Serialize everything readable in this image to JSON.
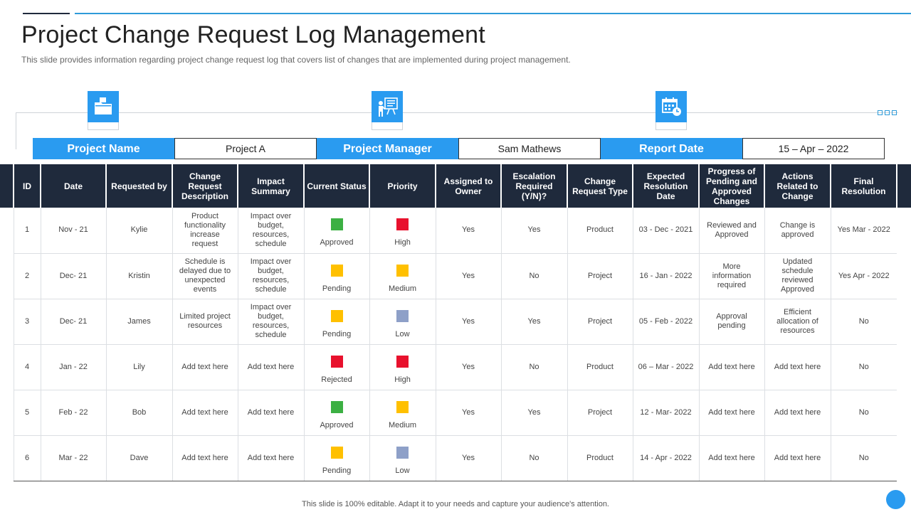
{
  "title": "Project Change Request Log Management",
  "subtitle": "This slide provides information regarding project change request log that covers list of changes that are implemented during project management.",
  "icons": [
    "folder-icon",
    "presentation-icon",
    "calendar-icon"
  ],
  "info": {
    "project_name_label": "Project Name",
    "project_name_value": "Project A",
    "project_manager_label": "Project Manager",
    "project_manager_value": "Sam Mathews",
    "report_date_label": "Report Date",
    "report_date_value": "15 – Apr – 2022"
  },
  "colors": {
    "green": "#3cb043",
    "yellow": "#ffc000",
    "red": "#e8112d",
    "grey": "#8ea0c8"
  },
  "table": {
    "headers": [
      "ID",
      "Date",
      "Requested by",
      "Change Request Description",
      "Impact Summary",
      "Current Status",
      "Priority",
      "Assigned to Owner",
      "Escalation Required (Y/N)?",
      "Change Request Type",
      "Expected Resolution Date",
      "Progress of Pending and Approved Changes",
      "Actions Related to Change",
      "Final Resolution"
    ],
    "rows": [
      {
        "id": "1",
        "date": "Nov - 21",
        "by": "Kylie",
        "desc": "Product functionality increase request",
        "impact": "Impact over budget, resources, schedule",
        "status": "Approved",
        "status_color": "green",
        "priority": "High",
        "priority_color": "red",
        "owner": "Yes",
        "escalation": "Yes",
        "type": "Product",
        "expected": "03 - Dec - 2021",
        "progress": "Reviewed and Approved",
        "actions": "Change is approved",
        "final": "Yes Mar - 2022"
      },
      {
        "id": "2",
        "date": "Dec- 21",
        "by": "Kristin",
        "desc": "Schedule is delayed due to unexpected events",
        "impact": "Impact over budget, resources, schedule",
        "status": "Pending",
        "status_color": "yellow",
        "priority": "Medium",
        "priority_color": "yellow",
        "owner": "Yes",
        "escalation": "No",
        "type": "Project",
        "expected": "16 - Jan - 2022",
        "progress": "More information required",
        "actions": "Updated schedule reviewed Approved",
        "final": "Yes Apr - 2022"
      },
      {
        "id": "3",
        "date": "Dec- 21",
        "by": "James",
        "desc": "Limited project resources",
        "impact": "Impact over budget, resources, schedule",
        "status": "Pending",
        "status_color": "yellow",
        "priority": "Low",
        "priority_color": "grey",
        "owner": "Yes",
        "escalation": "Yes",
        "type": "Project",
        "expected": "05 - Feb - 2022",
        "progress": "Approval pending",
        "actions": "Efficient allocation of resources",
        "final": "No"
      },
      {
        "id": "4",
        "date": "Jan - 22",
        "by": "Lily",
        "desc": "Add text here",
        "impact": "Add text here",
        "status": "Rejected",
        "status_color": "red",
        "priority": "High",
        "priority_color": "red",
        "owner": "Yes",
        "escalation": "No",
        "type": "Product",
        "expected": "06 – Mar - 2022",
        "progress": "Add text here",
        "actions": "Add text here",
        "final": "No"
      },
      {
        "id": "5",
        "date": "Feb - 22",
        "by": "Bob",
        "desc": "Add text here",
        "impact": "Add text here",
        "status": "Approved",
        "status_color": "green",
        "priority": "Medium",
        "priority_color": "yellow",
        "owner": "Yes",
        "escalation": "Yes",
        "type": "Project",
        "expected": "12 - Mar- 2022",
        "progress": "Add text here",
        "actions": "Add text here",
        "final": "No"
      },
      {
        "id": "6",
        "date": "Mar - 22",
        "by": "Dave",
        "desc": "Add text here",
        "impact": "Add text here",
        "status": "Pending",
        "status_color": "yellow",
        "priority": "Low",
        "priority_color": "grey",
        "owner": "Yes",
        "escalation": "No",
        "type": "Product",
        "expected": "14 - Apr - 2022",
        "progress": "Add text here",
        "actions": "Add text here",
        "final": "No"
      }
    ]
  },
  "footer": "This slide is 100% editable. Adapt it to your needs and capture your audience's attention."
}
